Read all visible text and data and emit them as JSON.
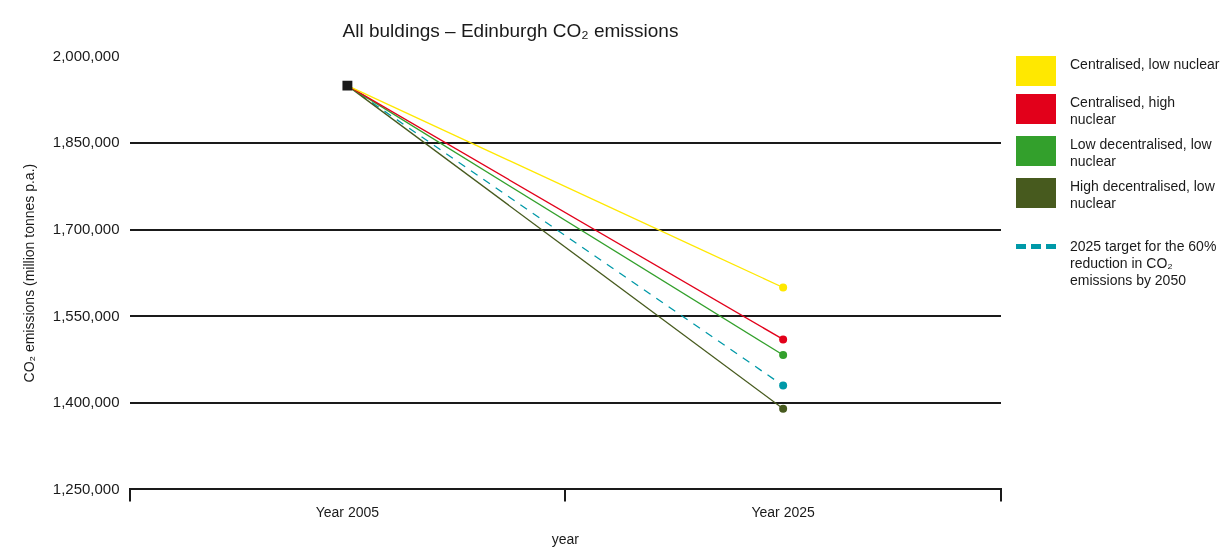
{
  "chart_data": {
    "type": "line",
    "title": "All buldings – Edinburgh CO₂ emissions",
    "xlabel": "year",
    "ylabel": "CO₂ emissions (million tonnes p.a.)",
    "categories": [
      "Year 2005",
      "Year 2025"
    ],
    "series": [
      {
        "name": "Centralised, low nuclear",
        "color": "#ffe800",
        "values": [
          1950000,
          1600000
        ]
      },
      {
        "name": "Centralised, high nuclear",
        "color": "#e2001a",
        "values": [
          1950000,
          1510000
        ]
      },
      {
        "name": "Low decentralised, low nuclear",
        "color": "#33a02c",
        "values": [
          1950000,
          1483000
        ]
      },
      {
        "name": "High decentralised, low nuclear",
        "color": "#475a1e",
        "values": [
          1950000,
          1390000
        ]
      },
      {
        "name": "2025 target for the 60% reduction in CO₂ emissions by 2050",
        "color": "#0099a8",
        "values": [
          1950000,
          1430000
        ],
        "line_style": "dashed"
      },
      {
        "type": "scatter",
        "color": "#1a1a1a",
        "marker": "square",
        "values": [
          1950000,
          null
        ]
      }
    ],
    "marker": "circle",
    "line_style": "solid",
    "ylim": [
      1250000,
      2000000
    ],
    "yticks": [
      {
        "value": 1250000,
        "label": "1,250,000"
      },
      {
        "value": 1400000,
        "label": "1,400,000"
      },
      {
        "value": 1550000,
        "label": "1,550,000"
      },
      {
        "value": 1700000,
        "label": "1,700,000"
      },
      {
        "value": 1850000,
        "label": "1,850,000"
      },
      {
        "value": 2000000,
        "label": "2,000,000"
      }
    ],
    "grid": "y",
    "legend": "right"
  }
}
